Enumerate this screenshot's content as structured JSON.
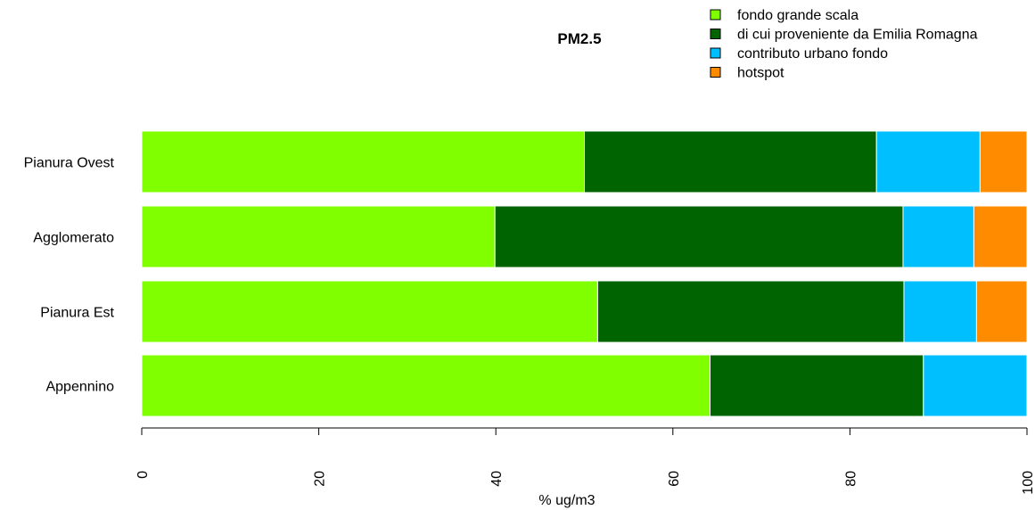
{
  "chart_data": {
    "type": "bar",
    "orientation": "horizontal",
    "stacked": true,
    "title": "PM2.5",
    "xlabel": "% ug/m3",
    "ylabel": "",
    "xlim": [
      0,
      100
    ],
    "xticks": [
      0,
      20,
      40,
      60,
      80,
      100
    ],
    "grid": false,
    "legend_position": "top-right",
    "categories": [
      "Pianura Ovest",
      "Agglomerato",
      "Pianura Est",
      "Appennino"
    ],
    "series": [
      {
        "name": "fondo grande scala",
        "color": "#7FFF00",
        "values": [
          50.0,
          39.9,
          51.5,
          64.2
        ]
      },
      {
        "name": "di cui proveniente da Emilia Romagna",
        "color": "#006400",
        "values": [
          33.0,
          46.1,
          34.6,
          24.1
        ]
      },
      {
        "name": "contributo urbano fondo",
        "color": "#00BFFF",
        "values": [
          11.7,
          8.0,
          8.2,
          11.7
        ]
      },
      {
        "name": "hotspot",
        "color": "#FF8C00",
        "values": [
          5.3,
          6.0,
          5.7,
          0.0
        ]
      }
    ]
  }
}
